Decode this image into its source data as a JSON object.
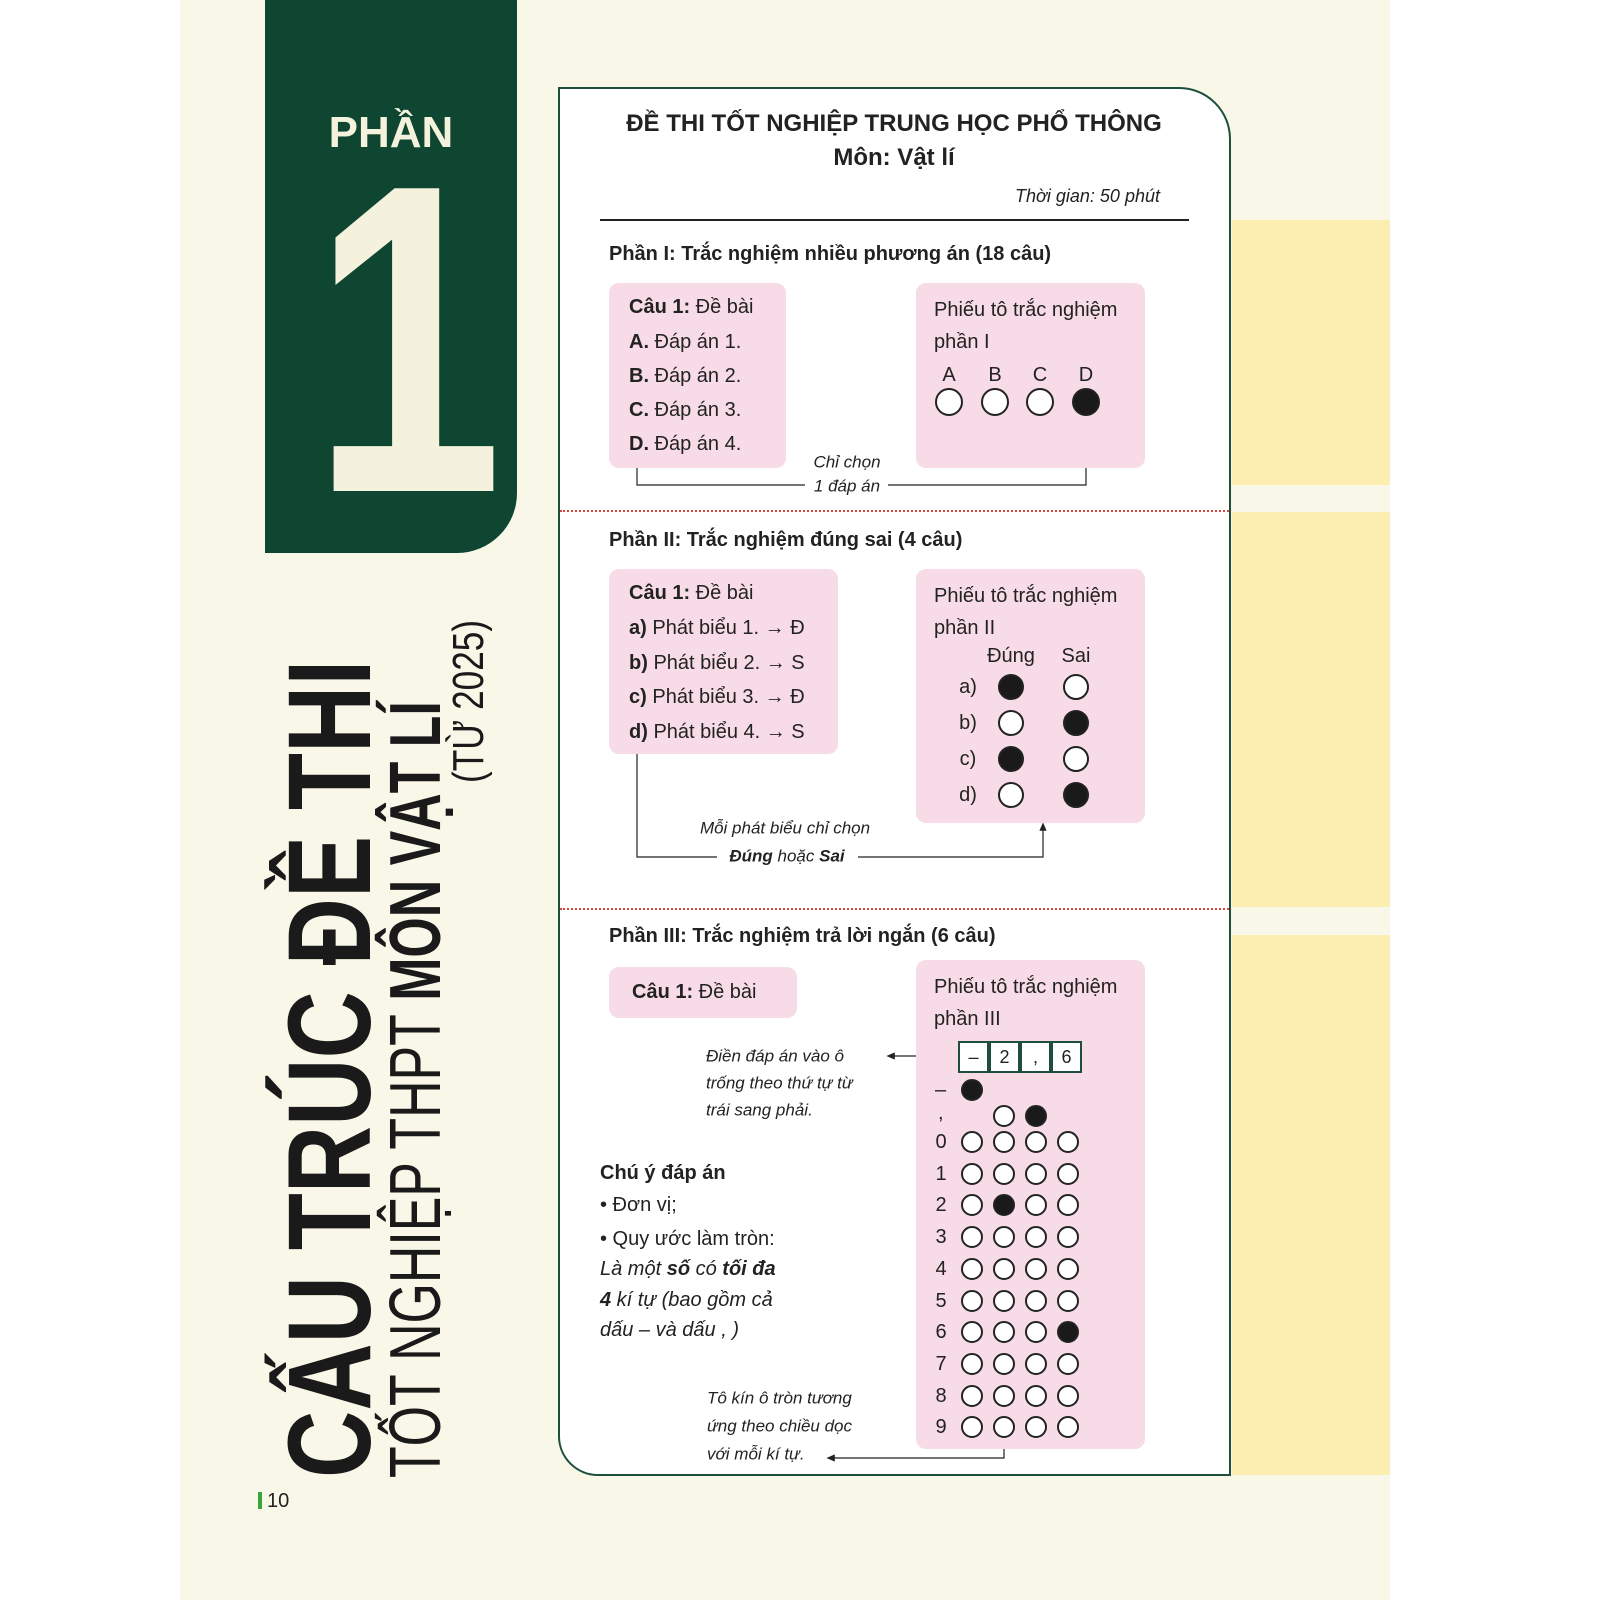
{
  "cover": {
    "part_word": "PHẦN",
    "part_number": "1",
    "title_line1": "CẤU TRÚC ĐỀ THI",
    "title_line2_regular": "TỐT NGHIỆP THPT",
    "title_line2_bold": "MÔN VẬT LÍ",
    "title_line3": "(TỪ 2025)",
    "page_number": "10"
  },
  "exam": {
    "title": "ĐỀ THI TỐT NGHIỆP TRUNG HỌC PHỔ THÔNG",
    "subject": "Môn: Vật lí",
    "time": "Thời gian: 50 phút"
  },
  "part1": {
    "heading": "Phần I: Trắc nghiệm nhiều phương án (18 câu)",
    "question_bold": "Câu 1:",
    "question_text": " Đề bài",
    "options": [
      {
        "key": "A.",
        "text": " Đáp án 1."
      },
      {
        "key": "B.",
        "text": " Đáp án 2."
      },
      {
        "key": "C.",
        "text": " Đáp án 3."
      },
      {
        "key": "D.",
        "text": " Đáp án 4."
      }
    ],
    "sheet_line1": "Phiếu tô trắc nghiệm",
    "sheet_line2": "phần I",
    "letters": [
      "A",
      "B",
      "C",
      "D"
    ],
    "filled": [
      false,
      false,
      false,
      true
    ],
    "note_line1": "Chỉ chọn",
    "note_line2": "1 đáp án"
  },
  "part2": {
    "heading": "Phần II: Trắc nghiệm đúng sai (4 câu)",
    "question_bold": "Câu 1:",
    "question_text": " Đề bài",
    "statements": [
      {
        "key": "a)",
        "text": " Phát biểu 1. → Đ"
      },
      {
        "key": "b)",
        "text": " Phát biểu 2. → S"
      },
      {
        "key": "c)",
        "text": " Phát biểu 3. → Đ"
      },
      {
        "key": "d)",
        "text": " Phát biểu 4. → S"
      }
    ],
    "sheet_line1": "Phiếu tô trắc nghiệm",
    "sheet_line2": "phần II",
    "col_true": "Đúng",
    "col_false": "Sai",
    "rows": [
      {
        "label": "a)",
        "answer": "true"
      },
      {
        "label": "b)",
        "answer": "false"
      },
      {
        "label": "c)",
        "answer": "true"
      },
      {
        "label": "d)",
        "answer": "false"
      }
    ],
    "note_line1": "Mỗi phát biểu chỉ chọn",
    "note_bold1": "Đúng",
    "note_mid": " hoặc ",
    "note_bold2": "Sai"
  },
  "part3": {
    "heading": "Phần III: Trắc nghiệm trả lời ngắn (6 câu)",
    "question_bold": "Câu 1:",
    "question_text": " Đề bài",
    "sheet_line1": "Phiếu tô trắc nghiệm",
    "sheet_line2": "phần III",
    "answer_cells": [
      "–",
      "2",
      ",",
      "6"
    ],
    "fill_note": [
      "Điền đáp án vào ô",
      "trống theo thứ tự từ",
      "trái sang phải."
    ],
    "minus_label": "–",
    "comma_label": ",",
    "digits": [
      "0",
      "1",
      "2",
      "3",
      "4",
      "5",
      "6",
      "7",
      "8",
      "9"
    ],
    "filled_digits": [
      {
        "digit": "2",
        "column": 2
      },
      {
        "digit": "6",
        "column": 4
      }
    ],
    "filled_minus_column": 1,
    "filled_comma_column": 3,
    "notice_title": "Chú ý đáp án",
    "notice_unit": "• Đơn vị;",
    "notice_round": "• Quy ước làm tròn:",
    "notice_it1": "Là một ",
    "notice_b1": "số",
    "notice_it2": " có ",
    "notice_b2": "tối đa",
    "notice_b3": "4",
    "notice_it3": " kí tự (bao gồm cả",
    "notice_it4": "dấu – và dấu , )",
    "column_note": [
      "Tô kín ô tròn  tương",
      "ứng theo chiều dọc",
      "với mỗi kí tự."
    ]
  },
  "colors": {
    "green": "#0e4631",
    "cream": "#f9f7e8",
    "pink": "#f7dbe6",
    "yellow": "#fbeeb0",
    "red": "#d9443e"
  }
}
